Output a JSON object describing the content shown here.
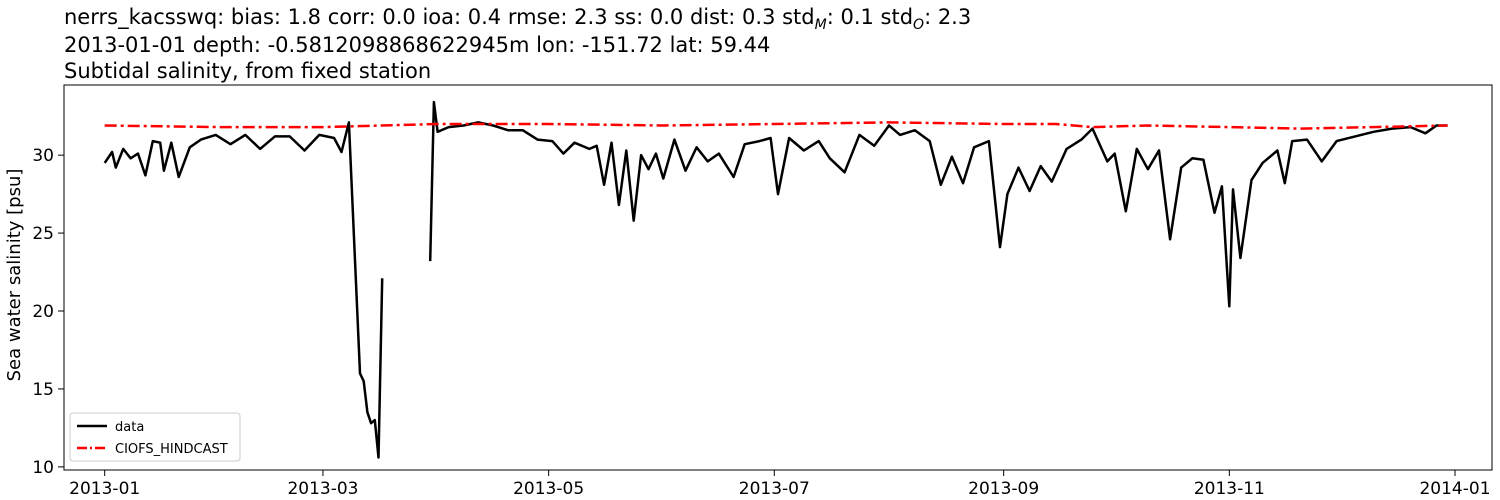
{
  "chart_data": {
    "type": "line",
    "title_lines": [
      "nerrs_kacsswq: bias: 1.8  corr: 0.0  ioa: 0.4  rmse: 2.3  ss: 0.0  dist: 0.3  std",
      "2013-01-01 depth: -0.5812098868622945m lon: -151.72 lat: 59.44",
      "Subtidal salinity, from fixed station"
    ],
    "title_subscripts": {
      "std_m_sub": "M",
      "std_m_value": ": 0.1  std",
      "std_o_sub": "O",
      "std_o_value": ": 2.3"
    },
    "xlabel": "",
    "ylabel": "Sea water salinity [psu]",
    "x_ticks": [
      "2013-01",
      "2013-03",
      "2013-05",
      "2013-07",
      "2013-09",
      "2013-11",
      "2014-01"
    ],
    "y_ticks": [
      "10",
      "15",
      "20",
      "25",
      "30"
    ],
    "xlim": [
      "2012-12-21",
      "2014-01-11"
    ],
    "ylim": [
      9.8,
      34.5
    ],
    "legend_position": "lower-left",
    "series": [
      {
        "name": "data",
        "color": "#000000",
        "style": "solid",
        "points": [
          [
            "2013-01-01",
            29.5
          ],
          [
            "2013-01-03",
            30.2
          ],
          [
            "2013-01-04",
            29.2
          ],
          [
            "2013-01-06",
            30.4
          ],
          [
            "2013-01-08",
            29.8
          ],
          [
            "2013-01-10",
            30.1
          ],
          [
            "2013-01-12",
            28.7
          ],
          [
            "2013-01-14",
            30.9
          ],
          [
            "2013-01-16",
            30.8
          ],
          [
            "2013-01-17",
            29.0
          ],
          [
            "2013-01-19",
            30.8
          ],
          [
            "2013-01-21",
            28.6
          ],
          [
            "2013-01-24",
            30.5
          ],
          [
            "2013-01-27",
            31.0
          ],
          [
            "2013-01-31",
            31.3
          ],
          [
            "2013-02-04",
            30.7
          ],
          [
            "2013-02-08",
            31.3
          ],
          [
            "2013-02-12",
            30.4
          ],
          [
            "2013-02-16",
            31.2
          ],
          [
            "2013-02-20",
            31.2
          ],
          [
            "2013-02-24",
            30.3
          ],
          [
            "2013-02-28",
            31.3
          ],
          [
            "2013-03-04",
            31.1
          ],
          [
            "2013-03-06",
            30.2
          ],
          [
            "2013-03-08",
            32.1
          ],
          [
            "2013-03-11",
            16.0
          ],
          [
            "2013-03-12",
            15.5
          ],
          [
            "2013-03-13",
            13.5
          ],
          [
            "2013-03-14",
            12.8
          ],
          [
            "2013-03-15",
            13.0
          ],
          [
            "2013-03-16",
            10.6
          ],
          [
            "2013-03-17",
            22.1
          ],
          [
            null,
            null
          ],
          [
            "2013-03-30",
            23.2
          ],
          [
            "2013-03-31",
            33.4
          ],
          [
            "2013-04-01",
            31.5
          ],
          [
            "2013-04-04",
            31.8
          ],
          [
            "2013-04-08",
            31.9
          ],
          [
            "2013-04-12",
            32.1
          ],
          [
            "2013-04-16",
            31.9
          ],
          [
            "2013-04-20",
            31.6
          ],
          [
            "2013-04-24",
            31.6
          ],
          [
            "2013-04-28",
            31.0
          ],
          [
            "2013-05-02",
            30.9
          ],
          [
            "2013-05-05",
            30.1
          ],
          [
            "2013-05-08",
            30.8
          ],
          [
            "2013-05-12",
            30.4
          ],
          [
            "2013-05-14",
            30.6
          ],
          [
            "2013-05-16",
            28.1
          ],
          [
            "2013-05-18",
            30.8
          ],
          [
            "2013-05-20",
            26.8
          ],
          [
            "2013-05-22",
            30.3
          ],
          [
            "2013-05-24",
            25.8
          ],
          [
            "2013-05-26",
            30.0
          ],
          [
            "2013-05-28",
            29.1
          ],
          [
            "2013-05-30",
            30.1
          ],
          [
            "2013-06-01",
            28.5
          ],
          [
            "2013-06-04",
            31.0
          ],
          [
            "2013-06-07",
            29.0
          ],
          [
            "2013-06-10",
            30.5
          ],
          [
            "2013-06-13",
            29.6
          ],
          [
            "2013-06-16",
            30.1
          ],
          [
            "2013-06-20",
            28.6
          ],
          [
            "2013-06-23",
            30.7
          ],
          [
            "2013-06-27",
            30.9
          ],
          [
            "2013-06-30",
            31.1
          ],
          [
            "2013-07-02",
            27.5
          ],
          [
            "2013-07-05",
            31.1
          ],
          [
            "2013-07-09",
            30.3
          ],
          [
            "2013-07-13",
            30.9
          ],
          [
            "2013-07-16",
            29.8
          ],
          [
            "2013-07-20",
            28.9
          ],
          [
            "2013-07-24",
            31.3
          ],
          [
            "2013-07-28",
            30.6
          ],
          [
            "2013-08-01",
            31.9
          ],
          [
            "2013-08-04",
            31.3
          ],
          [
            "2013-08-08",
            31.6
          ],
          [
            "2013-08-12",
            30.9
          ],
          [
            "2013-08-15",
            28.1
          ],
          [
            "2013-08-18",
            29.9
          ],
          [
            "2013-08-21",
            28.2
          ],
          [
            "2013-08-24",
            30.5
          ],
          [
            "2013-08-28",
            30.9
          ],
          [
            "2013-08-31",
            24.1
          ],
          [
            "2013-09-02",
            27.5
          ],
          [
            "2013-09-05",
            29.2
          ],
          [
            "2013-09-08",
            27.7
          ],
          [
            "2013-09-11",
            29.3
          ],
          [
            "2013-09-14",
            28.3
          ],
          [
            "2013-09-18",
            30.4
          ],
          [
            "2013-09-22",
            31.0
          ],
          [
            "2013-09-25",
            31.7
          ],
          [
            "2013-09-29",
            29.6
          ],
          [
            "2013-10-01",
            30.1
          ],
          [
            "2013-10-04",
            26.4
          ],
          [
            "2013-10-07",
            30.4
          ],
          [
            "2013-10-10",
            29.1
          ],
          [
            "2013-10-13",
            30.3
          ],
          [
            "2013-10-16",
            24.6
          ],
          [
            "2013-10-19",
            29.2
          ],
          [
            "2013-10-22",
            29.8
          ],
          [
            "2013-10-25",
            29.7
          ],
          [
            "2013-10-28",
            26.3
          ],
          [
            "2013-10-30",
            28.0
          ],
          [
            "2013-11-01",
            20.3
          ],
          [
            "2013-11-02",
            27.8
          ],
          [
            "2013-11-04",
            23.4
          ],
          [
            "2013-11-07",
            28.4
          ],
          [
            "2013-11-10",
            29.5
          ],
          [
            "2013-11-14",
            30.3
          ],
          [
            "2013-11-16",
            28.2
          ],
          [
            "2013-11-18",
            30.9
          ],
          [
            "2013-11-22",
            31.0
          ],
          [
            "2013-11-26",
            29.6
          ],
          [
            "2013-11-30",
            30.9
          ],
          [
            "2013-12-05",
            31.2
          ],
          [
            "2013-12-10",
            31.5
          ],
          [
            "2013-12-15",
            31.7
          ],
          [
            "2013-12-20",
            31.8
          ],
          [
            "2013-12-24",
            31.4
          ],
          [
            "2013-12-27",
            31.9
          ],
          [
            "2013-12-30",
            31.9
          ]
        ]
      },
      {
        "name": "CIOFS_HINDCAST",
        "color": "#ff0000",
        "style": "dashdot",
        "points": [
          [
            "2013-01-01",
            31.9
          ],
          [
            "2013-02-01",
            31.8
          ],
          [
            "2013-03-01",
            31.8
          ],
          [
            "2013-04-01",
            32.0
          ],
          [
            "2013-05-01",
            32.0
          ],
          [
            "2013-06-01",
            31.9
          ],
          [
            "2013-07-01",
            32.0
          ],
          [
            "2013-08-01",
            32.1
          ],
          [
            "2013-09-01",
            32.0
          ],
          [
            "2013-09-15",
            32.0
          ],
          [
            "2013-09-25",
            31.8
          ],
          [
            "2013-10-10",
            31.9
          ],
          [
            "2013-11-01",
            31.8
          ],
          [
            "2013-11-20",
            31.7
          ],
          [
            "2013-12-10",
            31.8
          ],
          [
            "2013-12-30",
            31.9
          ]
        ]
      }
    ]
  }
}
